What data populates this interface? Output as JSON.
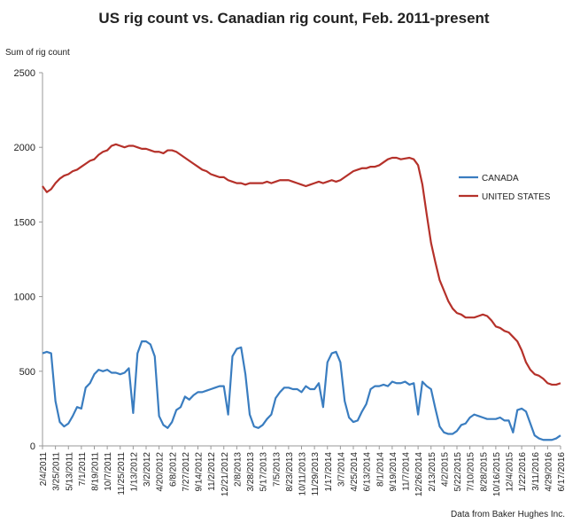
{
  "chart_data": {
    "type": "line",
    "title": "US rig count vs. Canadian rig count, Feb. 2011-present",
    "y_label": "Sum of rig count",
    "source": "Data from Baker Hughes Inc.",
    "categories": [
      "2/4/2011",
      null,
      null,
      "3/25/2011",
      null,
      null,
      "5/13/2011",
      null,
      null,
      "7/1/2011",
      null,
      null,
      "8/19/2011",
      null,
      null,
      "10/7/2011",
      null,
      null,
      "11/25/2011",
      null,
      null,
      "1/13/2012",
      null,
      null,
      "3/2/2012",
      null,
      null,
      "4/20/2012",
      null,
      null,
      "6/8/2012",
      null,
      null,
      "7/27/2012",
      null,
      null,
      "9/14/2012",
      null,
      null,
      "11/2/2012",
      null,
      null,
      "12/21/2012",
      null,
      null,
      "2/8/2013",
      null,
      null,
      "3/28/2013",
      null,
      null,
      "5/17/2013",
      null,
      null,
      "7/5/2013",
      null,
      null,
      "8/23/2013",
      null,
      null,
      "10/11/2013",
      null,
      null,
      "11/29/2013",
      null,
      null,
      "1/17/2014",
      null,
      null,
      "3/7/2014",
      null,
      null,
      "4/25/2014",
      null,
      null,
      "6/13/2014",
      null,
      null,
      "8/1/2014",
      null,
      null,
      "9/19/2014",
      null,
      null,
      "11/7/2014",
      null,
      null,
      "12/26/2014",
      null,
      null,
      "2/13/2015",
      null,
      null,
      "4/2/2015",
      null,
      null,
      "5/22/2015",
      null,
      null,
      "7/10/2015",
      null,
      null,
      "8/28/2015",
      null,
      null,
      "10/16/2015",
      null,
      null,
      "12/4/2015",
      null,
      null,
      "1/22/2016",
      null,
      null,
      "3/11/2016",
      null,
      null,
      "4/29/2016",
      null,
      null,
      "6/17/2016"
    ],
    "series": [
      {
        "name": "CANADA",
        "color": "#3a7dc0",
        "values": [
          620,
          630,
          620,
          300,
          160,
          130,
          150,
          200,
          260,
          250,
          390,
          420,
          480,
          510,
          500,
          510,
          490,
          490,
          480,
          490,
          520,
          220,
          620,
          700,
          700,
          680,
          600,
          200,
          140,
          120,
          160,
          240,
          260,
          330,
          310,
          340,
          360,
          360,
          370,
          380,
          390,
          400,
          400,
          210,
          600,
          650,
          660,
          480,
          210,
          130,
          120,
          140,
          180,
          210,
          320,
          360,
          390,
          390,
          380,
          380,
          360,
          400,
          380,
          380,
          420,
          260,
          560,
          620,
          630,
          560,
          300,
          190,
          160,
          170,
          230,
          280,
          380,
          400,
          400,
          410,
          400,
          430,
          420,
          420,
          430,
          410,
          420,
          210,
          430,
          400,
          380,
          250,
          130,
          90,
          80,
          80,
          100,
          140,
          150,
          190,
          210,
          200,
          190,
          180,
          180,
          180,
          190,
          170,
          170,
          90,
          240,
          250,
          230,
          150,
          70,
          50,
          40,
          40,
          40,
          50,
          70
        ]
      },
      {
        "name": "UNITED STATES",
        "color": "#b5312a",
        "values": [
          1740,
          1700,
          1720,
          1760,
          1790,
          1810,
          1820,
          1840,
          1850,
          1870,
          1890,
          1910,
          1920,
          1950,
          1970,
          1980,
          2010,
          2020,
          2010,
          2000,
          2010,
          2010,
          2000,
          1990,
          1990,
          1980,
          1970,
          1970,
          1960,
          1980,
          1980,
          1970,
          1950,
          1930,
          1910,
          1890,
          1870,
          1850,
          1840,
          1820,
          1810,
          1800,
          1800,
          1780,
          1770,
          1760,
          1760,
          1750,
          1760,
          1760,
          1760,
          1760,
          1770,
          1760,
          1770,
          1780,
          1780,
          1780,
          1770,
          1760,
          1750,
          1740,
          1750,
          1760,
          1770,
          1760,
          1770,
          1780,
          1770,
          1780,
          1800,
          1820,
          1840,
          1850,
          1860,
          1860,
          1870,
          1870,
          1880,
          1900,
          1920,
          1930,
          1930,
          1920,
          1925,
          1930,
          1920,
          1880,
          1750,
          1550,
          1360,
          1230,
          1110,
          1040,
          970,
          920,
          890,
          880,
          860,
          860,
          860,
          870,
          880,
          870,
          840,
          800,
          790,
          770,
          760,
          730,
          700,
          640,
          560,
          510,
          480,
          470,
          450,
          420,
          410,
          410,
          420
        ]
      }
    ],
    "ylim": [
      0,
      2500
    ],
    "yticks": [
      0,
      500,
      1000,
      1500,
      2000,
      2500
    ],
    "grid": false,
    "legend": "right"
  }
}
